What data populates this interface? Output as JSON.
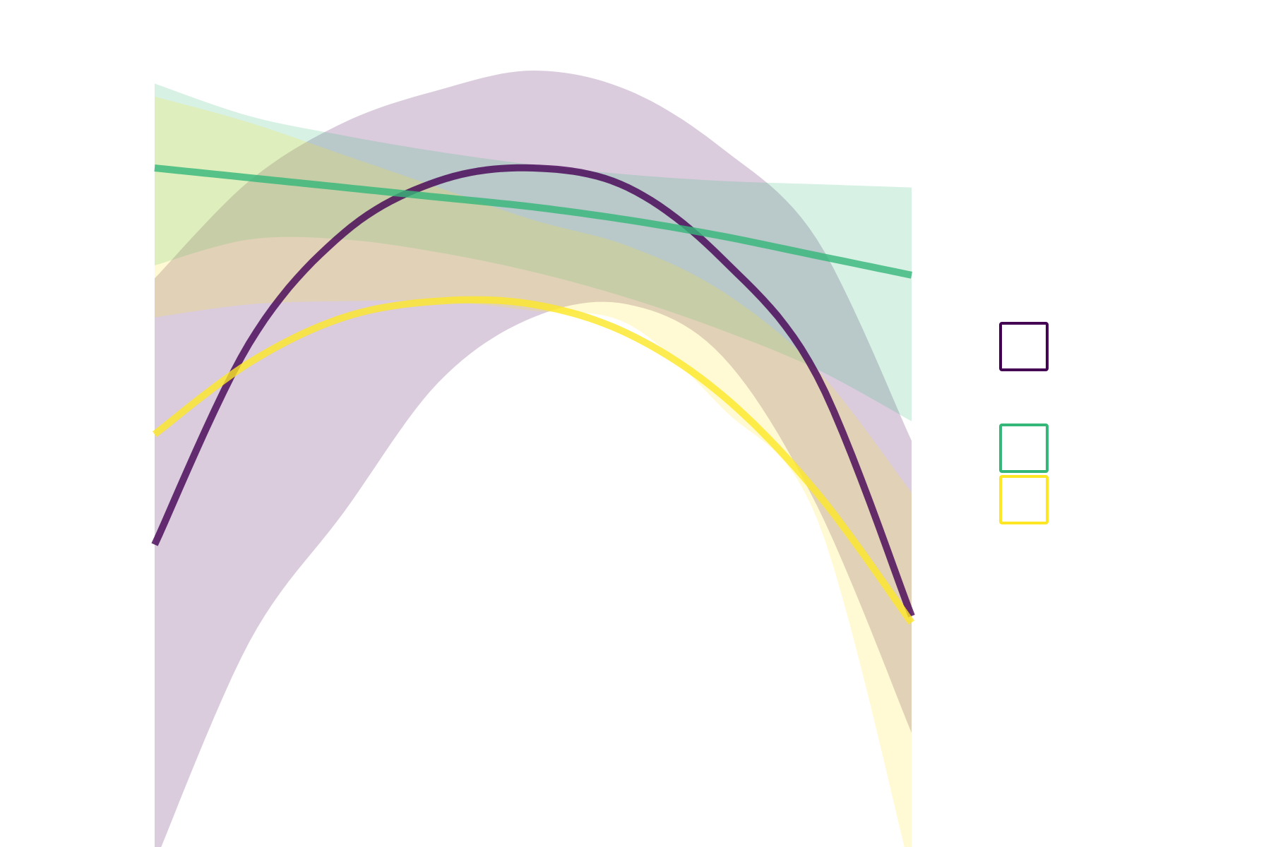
{
  "chart_data": {
    "type": "line",
    "x": [
      0,
      1,
      2,
      3,
      4,
      5,
      6,
      7,
      8
    ],
    "xlim": [
      0,
      8
    ],
    "ylim": [
      0,
      100
    ],
    "grid": false,
    "axes_visible": false,
    "legend_position": "right",
    "series": [
      {
        "color": "#440154",
        "values": [
          27,
          58,
          75,
          83,
          85,
          82,
          71,
          53,
          16
        ],
        "band_upper": [
          68,
          83,
          92,
          97,
          100,
          97,
          88,
          74,
          43
        ],
        "band_lower": [
          -22,
          12,
          32,
          52,
          62,
          64,
          56,
          33,
          -2
        ]
      },
      {
        "color": "#35b779",
        "values": [
          85,
          83.5,
          82,
          80.5,
          79,
          77,
          74.5,
          71.5,
          68.5
        ],
        "band_upper": [
          98,
          93,
          90,
          87.5,
          85.5,
          84,
          83,
          82.5,
          82
        ],
        "band_lower": [
          70,
          74,
          74,
          72,
          69,
          65,
          60,
          54,
          46
        ]
      },
      {
        "color": "#fde725",
        "values": [
          44,
          55,
          62,
          64.5,
          64,
          59.5,
          50,
          35,
          15
        ],
        "band_upper": [
          96,
          92,
          87,
          82,
          77,
          73,
          66,
          54,
          35
        ],
        "band_lower": [
          62,
          64,
          64.5,
          64.5,
          63,
          61,
          48,
          31,
          -24
        ]
      }
    ]
  }
}
